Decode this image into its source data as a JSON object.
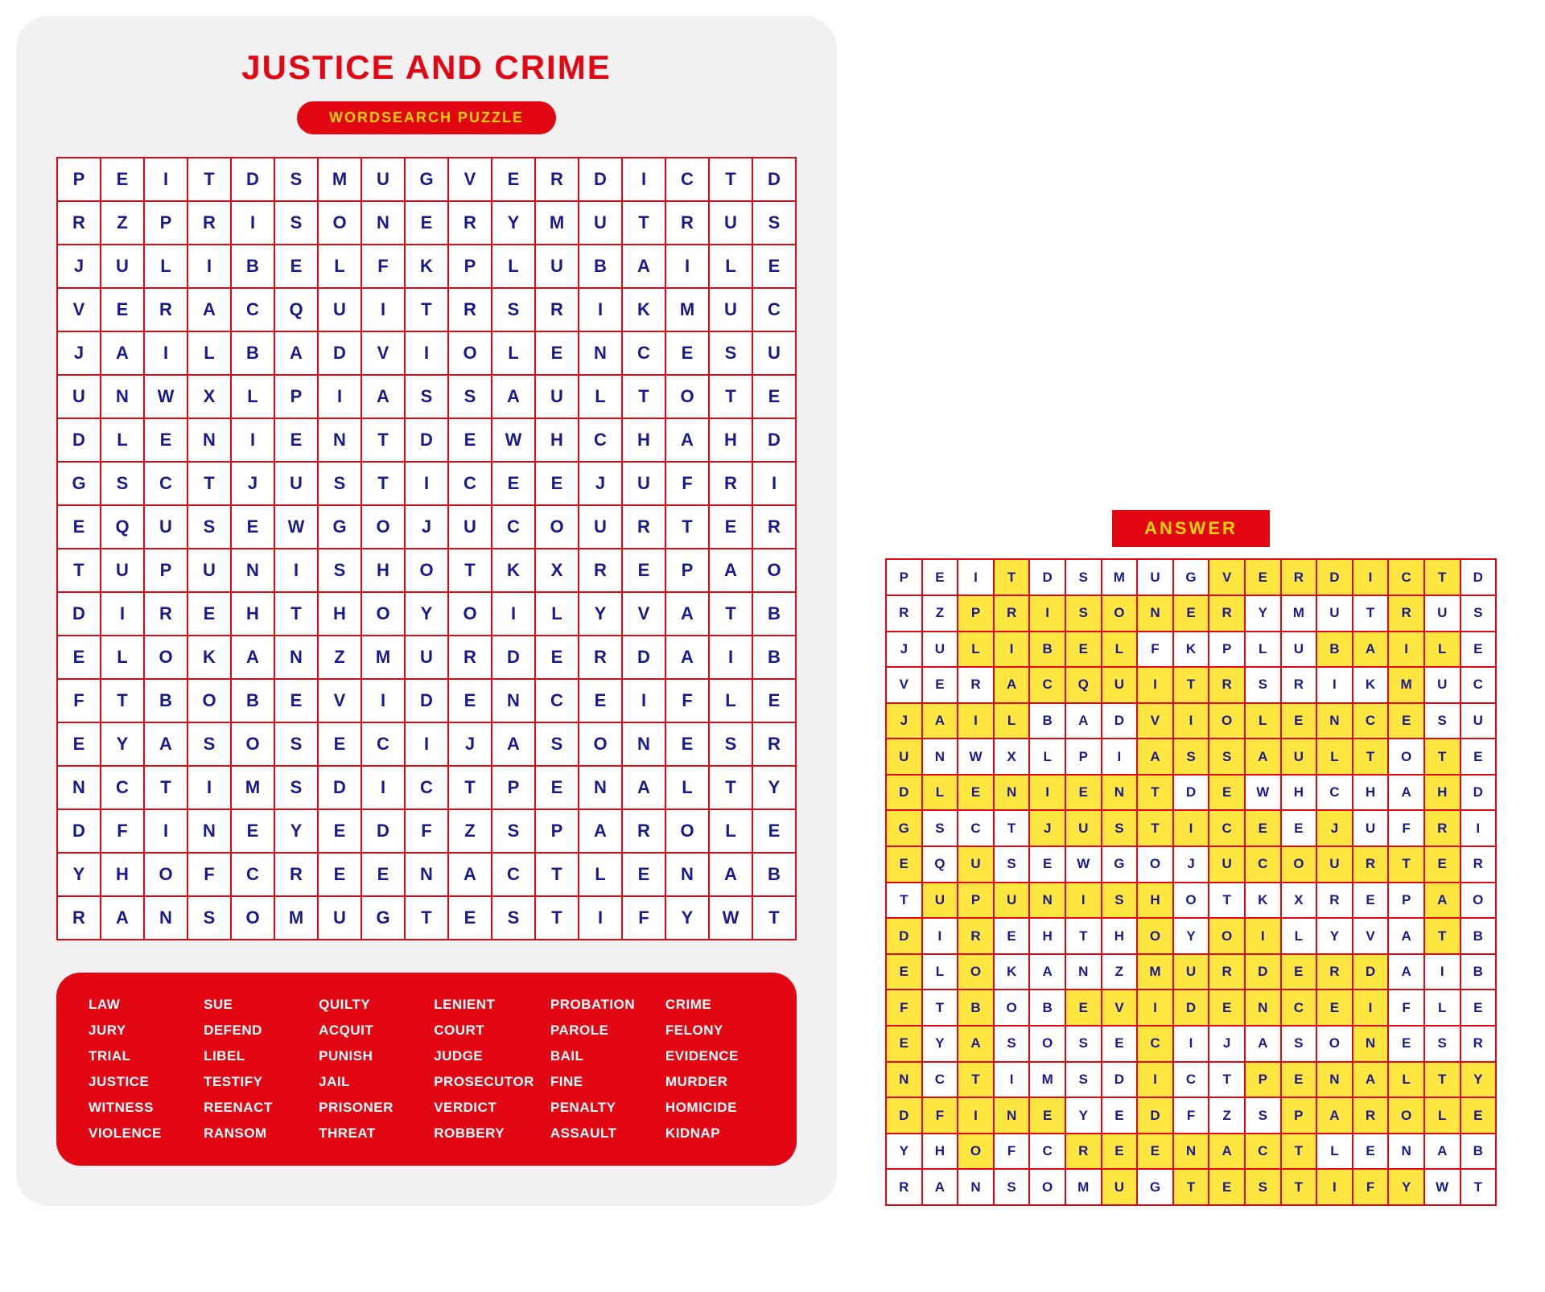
{
  "title": "JUSTICE AND CRIME",
  "subtitle": "WORDSEARCH PUZZLE",
  "answer_label": "ANSWER",
  "grid_cols": 17,
  "colors": {
    "red": "#e30613",
    "yellow": "#ffd500",
    "blue": "#1a1a8f",
    "cardbg": "#f1f1f1",
    "highlight": "#ffe640"
  },
  "grid": [
    [
      "P",
      "E",
      "I",
      "T",
      "D",
      "S",
      "M",
      "U",
      "G",
      "V",
      "E",
      "R",
      "D",
      "I",
      "C",
      "T",
      "D"
    ],
    [
      "R",
      "Z",
      "P",
      "R",
      "I",
      "S",
      "O",
      "N",
      "E",
      "R",
      "Y",
      "M",
      "U",
      "T",
      "R",
      "U",
      "S"
    ],
    [
      "J",
      "U",
      "L",
      "I",
      "B",
      "E",
      "L",
      "F",
      "K",
      "P",
      "L",
      "U",
      "B",
      "A",
      "I",
      "L",
      "E"
    ],
    [
      "V",
      "E",
      "R",
      "A",
      "C",
      "Q",
      "U",
      "I",
      "T",
      "R",
      "S",
      "R",
      "I",
      "K",
      "M",
      "U",
      "C"
    ],
    [
      "J",
      "A",
      "I",
      "L",
      "B",
      "A",
      "D",
      "V",
      "I",
      "O",
      "L",
      "E",
      "N",
      "C",
      "E",
      "S",
      "U"
    ],
    [
      "U",
      "N",
      "W",
      "X",
      "L",
      "P",
      "I",
      "A",
      "S",
      "S",
      "A",
      "U",
      "L",
      "T",
      "O",
      "T",
      "E"
    ],
    [
      "D",
      "L",
      "E",
      "N",
      "I",
      "E",
      "N",
      "T",
      "D",
      "E",
      "W",
      "H",
      "C",
      "H",
      "A",
      "H",
      "D"
    ],
    [
      "G",
      "S",
      "C",
      "T",
      "J",
      "U",
      "S",
      "T",
      "I",
      "C",
      "E",
      "E",
      "J",
      "U",
      "F",
      "R",
      "I"
    ],
    [
      "E",
      "Q",
      "U",
      "S",
      "E",
      "W",
      "G",
      "O",
      "J",
      "U",
      "C",
      "O",
      "U",
      "R",
      "T",
      "E",
      "R"
    ],
    [
      "T",
      "U",
      "P",
      "U",
      "N",
      "I",
      "S",
      "H",
      "O",
      "T",
      "K",
      "X",
      "R",
      "E",
      "P",
      "A",
      "O"
    ],
    [
      "D",
      "I",
      "R",
      "E",
      "H",
      "T",
      "H",
      "O",
      "Y",
      "O",
      "I",
      "L",
      "Y",
      "V",
      "A",
      "T",
      "B"
    ],
    [
      "E",
      "L",
      "O",
      "K",
      "A",
      "N",
      "Z",
      "M",
      "U",
      "R",
      "D",
      "E",
      "R",
      "D",
      "A",
      "I",
      "B"
    ],
    [
      "F",
      "T",
      "B",
      "O",
      "B",
      "E",
      "V",
      "I",
      "D",
      "E",
      "N",
      "C",
      "E",
      "I",
      "F",
      "L",
      "E"
    ],
    [
      "E",
      "Y",
      "A",
      "S",
      "O",
      "S",
      "E",
      "C",
      "I",
      "J",
      "A",
      "S",
      "O",
      "N",
      "E",
      "S",
      "R"
    ],
    [
      "N",
      "C",
      "T",
      "I",
      "M",
      "S",
      "D",
      "I",
      "C",
      "T",
      "P",
      "E",
      "N",
      "A",
      "L",
      "T",
      "Y"
    ],
    [
      "D",
      "F",
      "I",
      "N",
      "E",
      "Y",
      "E",
      "D",
      "F",
      "Z",
      "S",
      "P",
      "A",
      "R",
      "O",
      "L",
      "E"
    ],
    [
      "Y",
      "H",
      "O",
      "F",
      "C",
      "R",
      "E",
      "E",
      "N",
      "A",
      "C",
      "T",
      "L",
      "E",
      "N",
      "A",
      "B"
    ],
    [
      "R",
      "A",
      "N",
      "S",
      "O",
      "M",
      "U",
      "G",
      "T",
      "E",
      "S",
      "T",
      "I",
      "F",
      "Y",
      "W",
      "T"
    ]
  ],
  "highlights": [
    [
      0,
      3
    ],
    [
      0,
      9
    ],
    [
      0,
      10
    ],
    [
      0,
      11
    ],
    [
      0,
      12
    ],
    [
      0,
      13
    ],
    [
      0,
      14
    ],
    [
      0,
      15
    ],
    [
      1,
      2
    ],
    [
      1,
      3
    ],
    [
      1,
      4
    ],
    [
      1,
      5
    ],
    [
      1,
      6
    ],
    [
      1,
      7
    ],
    [
      1,
      8
    ],
    [
      1,
      9
    ],
    [
      1,
      14
    ],
    [
      2,
      2
    ],
    [
      2,
      3
    ],
    [
      2,
      4
    ],
    [
      2,
      5
    ],
    [
      2,
      6
    ],
    [
      2,
      12
    ],
    [
      2,
      13
    ],
    [
      2,
      14
    ],
    [
      2,
      15
    ],
    [
      3,
      3
    ],
    [
      3,
      4
    ],
    [
      3,
      5
    ],
    [
      3,
      6
    ],
    [
      3,
      7
    ],
    [
      3,
      8
    ],
    [
      3,
      9
    ],
    [
      3,
      14
    ],
    [
      4,
      0
    ],
    [
      4,
      1
    ],
    [
      4,
      2
    ],
    [
      4,
      3
    ],
    [
      4,
      7
    ],
    [
      4,
      8
    ],
    [
      4,
      9
    ],
    [
      4,
      10
    ],
    [
      4,
      11
    ],
    [
      4,
      12
    ],
    [
      4,
      13
    ],
    [
      4,
      14
    ],
    [
      5,
      0
    ],
    [
      5,
      7
    ],
    [
      5,
      8
    ],
    [
      5,
      9
    ],
    [
      5,
      10
    ],
    [
      5,
      11
    ],
    [
      5,
      12
    ],
    [
      5,
      13
    ],
    [
      5,
      15
    ],
    [
      6,
      0
    ],
    [
      6,
      1
    ],
    [
      6,
      2
    ],
    [
      6,
      3
    ],
    [
      6,
      4
    ],
    [
      6,
      5
    ],
    [
      6,
      6
    ],
    [
      6,
      7
    ],
    [
      6,
      9
    ],
    [
      6,
      15
    ],
    [
      7,
      0
    ],
    [
      7,
      4
    ],
    [
      7,
      5
    ],
    [
      7,
      6
    ],
    [
      7,
      7
    ],
    [
      7,
      8
    ],
    [
      7,
      9
    ],
    [
      7,
      10
    ],
    [
      7,
      12
    ],
    [
      7,
      15
    ],
    [
      8,
      0
    ],
    [
      8,
      2
    ],
    [
      8,
      9
    ],
    [
      8,
      10
    ],
    [
      8,
      11
    ],
    [
      8,
      12
    ],
    [
      8,
      13
    ],
    [
      8,
      14
    ],
    [
      8,
      15
    ],
    [
      9,
      1
    ],
    [
      9,
      2
    ],
    [
      9,
      3
    ],
    [
      9,
      4
    ],
    [
      9,
      5
    ],
    [
      9,
      6
    ],
    [
      9,
      7
    ],
    [
      9,
      15
    ],
    [
      10,
      0
    ],
    [
      10,
      2
    ],
    [
      10,
      7
    ],
    [
      10,
      9
    ],
    [
      10,
      10
    ],
    [
      10,
      15
    ],
    [
      11,
      0
    ],
    [
      11,
      2
    ],
    [
      11,
      7
    ],
    [
      11,
      8
    ],
    [
      11,
      9
    ],
    [
      11,
      10
    ],
    [
      11,
      11
    ],
    [
      11,
      12
    ],
    [
      11,
      13
    ],
    [
      12,
      0
    ],
    [
      12,
      2
    ],
    [
      12,
      5
    ],
    [
      12,
      6
    ],
    [
      12,
      7
    ],
    [
      12,
      8
    ],
    [
      12,
      9
    ],
    [
      12,
      10
    ],
    [
      12,
      11
    ],
    [
      12,
      12
    ],
    [
      12,
      13
    ],
    [
      13,
      0
    ],
    [
      13,
      2
    ],
    [
      13,
      7
    ],
    [
      13,
      13
    ],
    [
      14,
      0
    ],
    [
      14,
      2
    ],
    [
      14,
      7
    ],
    [
      14,
      10
    ],
    [
      14,
      11
    ],
    [
      14,
      12
    ],
    [
      14,
      13
    ],
    [
      14,
      14
    ],
    [
      14,
      15
    ],
    [
      14,
      16
    ],
    [
      15,
      0
    ],
    [
      15,
      1
    ],
    [
      15,
      2
    ],
    [
      15,
      3
    ],
    [
      15,
      4
    ],
    [
      15,
      7
    ],
    [
      15,
      11
    ],
    [
      15,
      12
    ],
    [
      15,
      13
    ],
    [
      15,
      14
    ],
    [
      15,
      15
    ],
    [
      15,
      16
    ],
    [
      16,
      2
    ],
    [
      16,
      5
    ],
    [
      16,
      6
    ],
    [
      16,
      7
    ],
    [
      16,
      8
    ],
    [
      16,
      9
    ],
    [
      16,
      10
    ],
    [
      16,
      11
    ],
    [
      17,
      6
    ],
    [
      17,
      8
    ],
    [
      17,
      9
    ],
    [
      17,
      10
    ],
    [
      17,
      11
    ],
    [
      17,
      12
    ],
    [
      17,
      13
    ],
    [
      17,
      14
    ]
  ],
  "words": [
    [
      "LAW",
      "SUE",
      "QUILTY",
      "LENIENT",
      "PROBATION",
      "CRIME"
    ],
    [
      "JURY",
      "DEFEND",
      "ACQUIT",
      "COURT",
      "PAROLE",
      "FELONY"
    ],
    [
      "TRIAL",
      "LIBEL",
      "PUNISH",
      "JUDGE",
      "BAIL",
      "EVIDENCE"
    ],
    [
      "JUSTICE",
      "TESTIFY",
      "JAIL",
      "PROSECUTOR",
      "FINE",
      "MURDER"
    ],
    [
      "WITNESS",
      "REENACT",
      "PRISONER",
      "VERDICT",
      "PENALTY",
      "HOMICIDE"
    ],
    [
      "VIOLENCE",
      "RANSOM",
      "THREAT",
      "ROBBERY",
      "ASSAULT",
      "KIDNAP"
    ]
  ]
}
